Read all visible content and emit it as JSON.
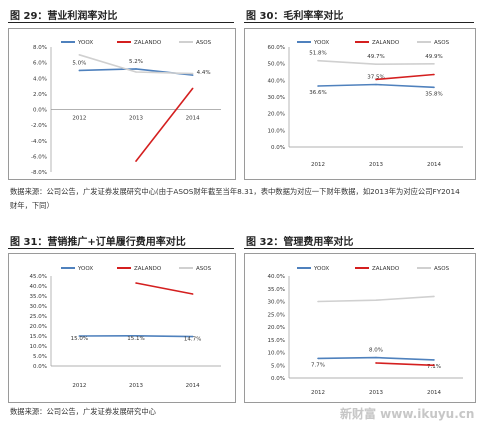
{
  "fig29": {
    "title": "图 29：营业利润率对比"
  },
  "fig30": {
    "title": "图 30：毛利率率对比"
  },
  "fig31": {
    "title": "图 31：营销推广+订单履行费用率对比"
  },
  "fig32": {
    "title": "图 32：管理费用率对比"
  },
  "source_top": {
    "line1": "数据来源：公司公告，广发证券发展研究中心(由于ASOS财年截至当年8.31，表中数据为对应一下财年数据，如2013年为对应公司FY2014",
    "line2": "财年，下同）"
  },
  "source_bottom": "数据来源：公司公告，广发证券发展研究中心",
  "watermark": "新财富 www.ikuyu.cn",
  "colors": {
    "YOOX": "#4f81bd",
    "ZALANDO": "#d41f1f",
    "ASOS": "#d0d0d0"
  },
  "chart_data": [
    {
      "id": "fig29",
      "type": "line",
      "categories": [
        "2012",
        "2013",
        "2014"
      ],
      "ylim": [
        -8,
        8
      ],
      "ytick_step": 2,
      "ytick_format": "pct1",
      "series": [
        {
          "name": "YOOX",
          "values": [
            5.0,
            5.2,
            4.4
          ],
          "labels": [
            "5.0%",
            "5.2%",
            "4.4%"
          ]
        },
        {
          "name": "ZALANDO",
          "values": [
            null,
            -6.6,
            2.7
          ],
          "labels": [
            null,
            null,
            null
          ]
        },
        {
          "name": "ASOS",
          "values": [
            7.0,
            4.8,
            4.6
          ],
          "labels": [
            null,
            null,
            null
          ]
        }
      ]
    },
    {
      "id": "fig30",
      "type": "line",
      "categories": [
        "2012",
        "2013",
        "2014"
      ],
      "ylim": [
        0,
        60
      ],
      "ytick_step": 10,
      "ytick_format": "pct1",
      "series": [
        {
          "name": "YOOX",
          "values": [
            36.6,
            37.5,
            35.8
          ],
          "labels": [
            "36.6%",
            "37.5%",
            "35.8%"
          ]
        },
        {
          "name": "ZALANDO",
          "values": [
            null,
            40.5,
            43.5
          ],
          "labels": [
            null,
            null,
            null
          ]
        },
        {
          "name": "ASOS",
          "values": [
            51.8,
            49.7,
            49.9
          ],
          "labels": [
            "51.8%",
            "49.7%",
            "49.9%"
          ]
        }
      ]
    },
    {
      "id": "fig31",
      "type": "line",
      "categories": [
        "2012",
        "2013",
        "2014"
      ],
      "ylim": [
        0,
        45
      ],
      "ytick_step": 5,
      "ytick_format": "pct1",
      "series": [
        {
          "name": "YOOX",
          "values": [
            15.0,
            15.1,
            14.7
          ],
          "labels": [
            "15.0%",
            "15.1%",
            "14.7%"
          ]
        },
        {
          "name": "ZALANDO",
          "values": [
            null,
            41.5,
            36.0
          ],
          "labels": [
            null,
            null,
            null
          ]
        },
        {
          "name": "ASOS",
          "values": [
            null,
            null,
            null
          ],
          "labels": [
            null,
            null,
            null
          ]
        }
      ]
    },
    {
      "id": "fig32",
      "type": "line",
      "categories": [
        "2012",
        "2013",
        "2014"
      ],
      "ylim": [
        0,
        40
      ],
      "ytick_step": 5,
      "ytick_format": "pct1",
      "series": [
        {
          "name": "YOOX",
          "values": [
            7.7,
            8.0,
            7.1
          ],
          "labels": [
            "7.7%",
            "8.0%",
            "7.1%"
          ]
        },
        {
          "name": "ZALANDO",
          "values": [
            null,
            5.9,
            5.0
          ],
          "labels": [
            null,
            null,
            null
          ]
        },
        {
          "name": "ASOS",
          "values": [
            30.0,
            30.5,
            32.0
          ],
          "labels": [
            null,
            null,
            null
          ]
        }
      ]
    }
  ]
}
